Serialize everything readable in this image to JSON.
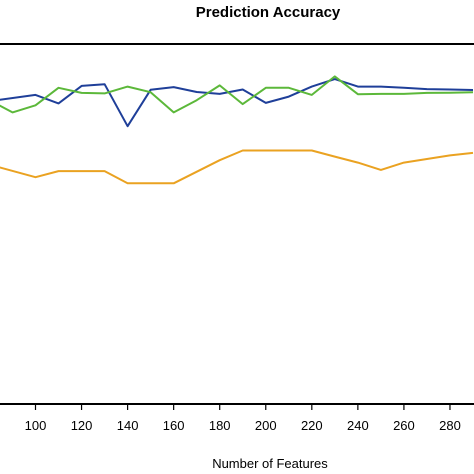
{
  "chart_data": {
    "type": "line",
    "title": "Prediction Accuracy",
    "xlabel": "Number of Features",
    "ylabel": "",
    "xlim": [
      80,
      290
    ],
    "ylim": [
      0,
      100
    ],
    "grid": false,
    "x_ticks": [
      100,
      120,
      140,
      160,
      180,
      200,
      220,
      240,
      260,
      280
    ],
    "series": [
      {
        "color": "#1f3f99",
        "x": [
          80,
          100,
          110,
          120,
          130,
          140,
          150,
          160,
          170,
          180,
          190,
          200,
          210,
          220,
          230,
          240,
          250,
          260,
          270,
          280,
          290
        ],
        "y": [
          80.8,
          83.4,
          79.9,
          87.1,
          87.8,
          70.5,
          85.5,
          86.6,
          84.6,
          83.8,
          85.6,
          80.1,
          82.7,
          86.8,
          89.9,
          86.8,
          86.8,
          86.3,
          85.8,
          85.6,
          85.4
        ]
      },
      {
        "color": "#5cb83a",
        "x": [
          80,
          90,
          100,
          110,
          120,
          130,
          140,
          150,
          160,
          170,
          180,
          190,
          200,
          210,
          220,
          230,
          240,
          250,
          260,
          270,
          280,
          290
        ],
        "y": [
          81.2,
          76.2,
          79.1,
          86.3,
          84.2,
          84.0,
          86.8,
          84.5,
          76.2,
          81.2,
          87.3,
          79.6,
          86.3,
          86.3,
          83.4,
          91.0,
          83.7,
          83.8,
          83.8,
          84.2,
          84.3,
          84.5
        ]
      },
      {
        "color": "#eaa221",
        "x": [
          80,
          100,
          110,
          120,
          130,
          140,
          150,
          160,
          180,
          190,
          200,
          210,
          220,
          230,
          240,
          250,
          260,
          270,
          280,
          290
        ],
        "y": [
          54.7,
          49.5,
          52.0,
          52.0,
          52.0,
          47.0,
          47.0,
          47.0,
          56.5,
          60.5,
          60.5,
          60.5,
          60.5,
          58.0,
          55.5,
          52.5,
          55.5,
          57.0,
          58.5,
          59.5
        ]
      }
    ]
  }
}
